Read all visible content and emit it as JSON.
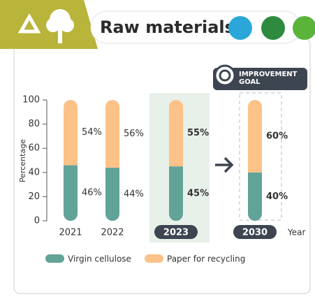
{
  "chart_data": {
    "type": "bar",
    "stacked": true,
    "title": "Raw materials",
    "annotation": "IMPROVEMENT GOAL",
    "ylabel": "Percentage",
    "xlabel": "Year",
    "categories": [
      "2021",
      "2022",
      "2023",
      "2030"
    ],
    "series": [
      {
        "name": "Virgin cellulose",
        "color": "#62a398",
        "values": [
          46,
          44,
          45,
          40
        ],
        "value_labels": [
          "46%",
          "44%",
          "45%",
          "40%"
        ]
      },
      {
        "name": "Paper for recycling",
        "color": "#fcc288",
        "values": [
          54,
          56,
          55,
          60
        ],
        "value_labels": [
          "54%",
          "56%",
          "55%",
          "60%"
        ]
      }
    ],
    "ylim": [
      0,
      100
    ],
    "yticks": [
      0,
      20,
      40,
      60,
      80,
      100
    ]
  }
}
